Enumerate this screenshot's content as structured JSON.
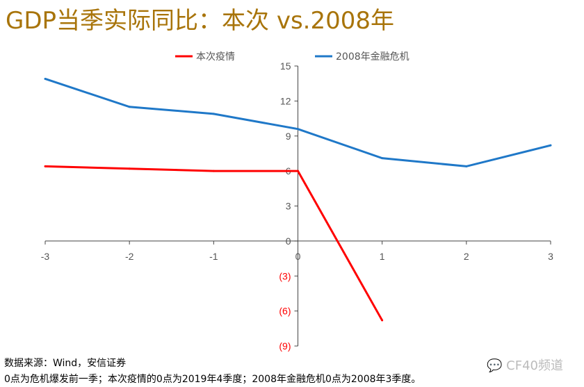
{
  "title": "GDP当季实际同比：本次 vs.2008年",
  "source": "数据来源：Wind，安信证券",
  "note": "0点为危机爆发前一季；本次疫情的0点为2019年4季度；2008年金融危机0点为2008年3季度。",
  "watermark": "CF40频道",
  "chart_data": {
    "type": "line",
    "x": [
      -3,
      -2,
      -1,
      0,
      1,
      2,
      3
    ],
    "xlim": [
      -3,
      3
    ],
    "ylim": [
      -9,
      15
    ],
    "xticks": [
      "-3",
      "-2",
      "-1",
      "0",
      "1",
      "2",
      "3"
    ],
    "yticks": [
      {
        "v": 15,
        "label": "15"
      },
      {
        "v": 12,
        "label": "12"
      },
      {
        "v": 9,
        "label": "9"
      },
      {
        "v": 6,
        "label": "6"
      },
      {
        "v": 3,
        "label": "3"
      },
      {
        "v": 0,
        "label": "0"
      },
      {
        "v": -3,
        "label": "(3)"
      },
      {
        "v": -6,
        "label": "(6)"
      },
      {
        "v": -9,
        "label": "(9)"
      }
    ],
    "negative_tick_color": "#ff0000",
    "grid": false,
    "legend_position": "top",
    "series": [
      {
        "name": "本次疫情",
        "color": "#ff0000",
        "values": [
          6.4,
          6.2,
          6.0,
          6.0,
          -6.8,
          null,
          null
        ]
      },
      {
        "name": "2008年金融危机",
        "color": "#1f78c8",
        "values": [
          13.9,
          11.5,
          10.9,
          9.6,
          7.1,
          6.4,
          8.2
        ]
      }
    ]
  }
}
